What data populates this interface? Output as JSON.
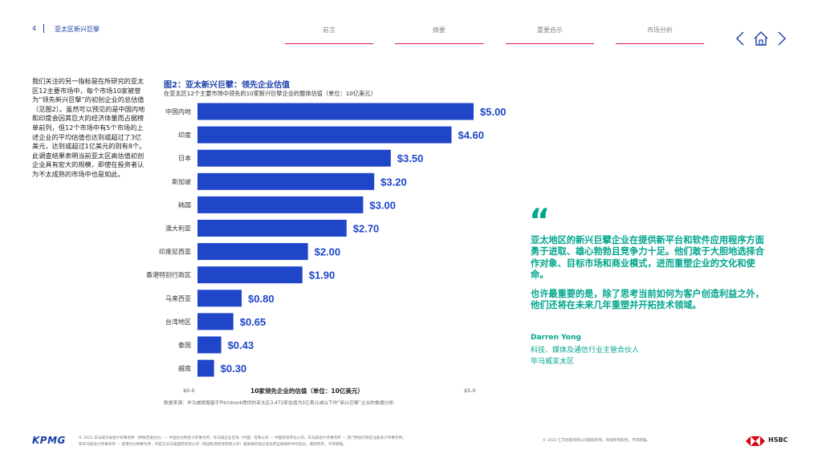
{
  "header": {
    "page_number": "4",
    "section_title": "亚太区新兴巨擘",
    "tabs": [
      "前言",
      "摘要",
      "重要启示",
      "市场分析"
    ]
  },
  "intro_text": "我们关注的另一指标是在所研究的亚太区12主要市场中，每个市场10家被誉为“领先新兴巨擘”的初创企业的总估值（见图2）。虽然可以预见的是中国内地和印度会因其巨大的经济体量而占据榜单前列，但12个市场中有5个市场的上述企业的平均估值也达到或超过了3亿美元，达到或超过1亿美元的则有8个。此调查结果表明当前亚太区高估值初创企业具有宏大的规模，即使在投资者认为不太成熟的市场中也是如此。",
  "chart_data": {
    "type": "bar",
    "orientation": "horizontal",
    "title": "图2：亚太新兴巨擘：领先企业估值",
    "subtitle": "在亚太区12个主要市场中领先的10家新兴巨擘企业的整体估值（单位：10亿美元）",
    "categories": [
      "中国内地",
      "印度",
      "日本",
      "新加坡",
      "韩国",
      "澳大利亚",
      "印度尼西亚",
      "香港特别行政区",
      "马来西亚",
      "台湾地区",
      "泰国",
      "越南"
    ],
    "values": [
      5.0,
      4.6,
      3.5,
      3.2,
      3.0,
      2.7,
      2.0,
      1.9,
      0.8,
      0.65,
      0.43,
      0.3
    ],
    "value_labels": [
      "$5.00",
      "$4.60",
      "$3.50",
      "$3.20",
      "$3.00",
      "$2.70",
      "$2.00",
      "$1.90",
      "$0.80",
      "$0.65",
      "$0.43",
      "$0.30"
    ],
    "xlim": [
      0,
      5
    ],
    "x_tick_labels": [
      "$0.0",
      "$5.0"
    ],
    "xlabel": "10家领先企业的估值（单位：10亿美元）",
    "source": "数据来源：毕马威根据基于Pitchbook提供的亚太区3,472家估值为5亿美元或以下的“新兴巨擘”企业的数据分析",
    "bar_color": "#1f45c9",
    "label_color": "#1f45c9"
  },
  "quote": {
    "mark": "“",
    "paragraph1": "亚太地区的新兴巨擘企业在提供新平台和软件应用程序方面勇于进取、雄心勃勃且竞争力十足。他们敢于大胆地选择合作对象、目标市场和商业模式，进而重塑企业的文化和使命。",
    "paragraph2": "也许最重要的是，除了思考当前如何为客户创造利益之外，他们还将在未来几年重塑并开拓技术领域。",
    "name": "Darren Yong",
    "role": "科技、媒体及通信行业主管合伙人",
    "org": "毕马威亚太区"
  },
  "footer": {
    "kpmg_logo": "KPMG",
    "legal_left_1": "© 2022 毕马威华振会计师事务所（特殊普通合伙）— 中国合伙制会计师事务所，毕马威企业咨询（中国）有限公司 — 中国有限责任公司，毕马威会计师事务所 — 澳门特别行政区注册会计师事务所，",
    "legal_left_2": "和毕马威会计师事务所 — 香港合伙制事务所，均是与毕马威国际有限公司（英国私营担保有限公司）相关联的独立成员所全球组织中的成员。版权所有，不得转载。",
    "legal_right": "© 2022 汇丰控股有限公司版权所有，保留所有权利，不得转载。",
    "hsbc_text": "HSBC"
  },
  "colors": {
    "brand_blue": "#1a3fa8",
    "accent_teal": "#00a58e",
    "nav_underline": "#d4145a"
  }
}
